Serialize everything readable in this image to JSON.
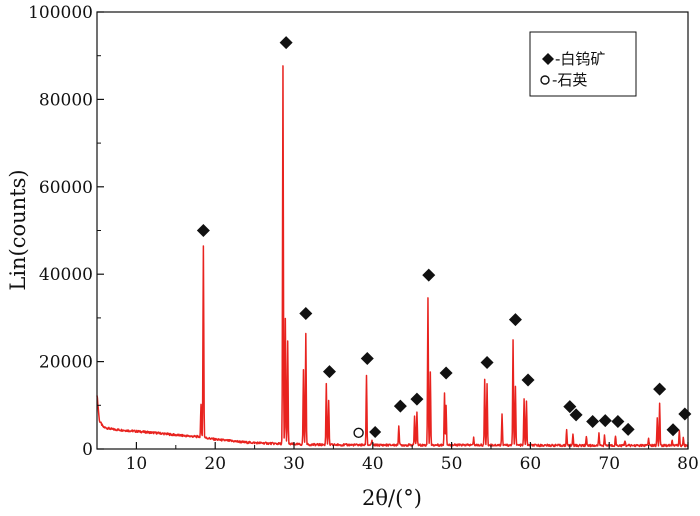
{
  "chart_data": {
    "type": "line",
    "xlabel": "2θ/(°)",
    "ylabel": "Lin(counts)",
    "xlim": [
      5,
      80
    ],
    "ylim": [
      0,
      100000
    ],
    "x_ticks": [
      10,
      20,
      30,
      40,
      50,
      60,
      70,
      80
    ],
    "y_ticks": [
      0,
      20000,
      40000,
      60000,
      80000,
      100000
    ],
    "x_tick_labels": [
      "10",
      "20",
      "30",
      "40",
      "50",
      "60",
      "70",
      "80"
    ],
    "y_tick_labels": [
      "0",
      "20000",
      "40000",
      "60000",
      "80000",
      "100000"
    ],
    "line_color": "#e8231f",
    "series": [
      {
        "color": "#e8231f",
        "baseline": [
          [
            5.0,
            12500
          ],
          [
            5.3,
            6500
          ],
          [
            5.8,
            5000
          ],
          [
            7,
            4500
          ],
          [
            9,
            4200
          ],
          [
            11,
            3900
          ],
          [
            13,
            3600
          ],
          [
            15,
            3200
          ],
          [
            17,
            2900
          ],
          [
            18,
            2800
          ],
          [
            20,
            2200
          ],
          [
            24,
            1500
          ],
          [
            28,
            1200
          ],
          [
            32,
            1000
          ],
          [
            36,
            950
          ],
          [
            40,
            900
          ],
          [
            45,
            900
          ],
          [
            50,
            900
          ],
          [
            55,
            900
          ],
          [
            60,
            850
          ],
          [
            65,
            800
          ],
          [
            70,
            800
          ],
          [
            75,
            800
          ],
          [
            80,
            800
          ]
        ],
        "peaks": [
          [
            18.5,
            46500
          ],
          [
            18.2,
            10000
          ],
          [
            28.6,
            87500
          ],
          [
            28.9,
            30000
          ],
          [
            29.2,
            24500
          ],
          [
            31.5,
            26500
          ],
          [
            31.2,
            18000
          ],
          [
            34.1,
            15000
          ],
          [
            34.4,
            11000
          ],
          [
            39.2,
            17000
          ],
          [
            39.9,
            2000
          ],
          [
            43.3,
            5500
          ],
          [
            45.3,
            7500
          ],
          [
            45.6,
            8500
          ],
          [
            47.0,
            34500
          ],
          [
            47.3,
            17500
          ],
          [
            49.1,
            13000
          ],
          [
            49.3,
            10000
          ],
          [
            52.8,
            2500
          ],
          [
            54.2,
            16000
          ],
          [
            54.5,
            15000
          ],
          [
            56.4,
            8000
          ],
          [
            57.8,
            25000
          ],
          [
            58.1,
            14500
          ],
          [
            59.2,
            11500
          ],
          [
            59.5,
            11000
          ],
          [
            64.6,
            4500
          ],
          [
            65.4,
            3500
          ],
          [
            67.1,
            3000
          ],
          [
            68.7,
            3500
          ],
          [
            69.4,
            3000
          ],
          [
            70.8,
            3000
          ],
          [
            72.0,
            2000
          ],
          [
            75.0,
            2500
          ],
          [
            76.1,
            7000
          ],
          [
            76.4,
            10500
          ],
          [
            78.0,
            2000
          ],
          [
            78.9,
            4000
          ],
          [
            79.4,
            2500
          ]
        ]
      }
    ],
    "markers": {
      "scheelite": {
        "symbol": "diamond",
        "points": [
          [
            18.5,
            50000
          ],
          [
            29.0,
            93000
          ],
          [
            31.5,
            31000
          ],
          [
            34.5,
            17700
          ],
          [
            39.3,
            20700
          ],
          [
            43.5,
            9800
          ],
          [
            45.6,
            11400
          ],
          [
            47.1,
            39800
          ],
          [
            49.3,
            17400
          ],
          [
            54.5,
            19800
          ],
          [
            58.1,
            29600
          ],
          [
            59.7,
            15800
          ],
          [
            65.0,
            9700
          ],
          [
            65.8,
            7800
          ],
          [
            67.9,
            6300
          ],
          [
            69.5,
            6500
          ],
          [
            71.1,
            6300
          ],
          [
            72.4,
            4500
          ],
          [
            76.4,
            13700
          ],
          [
            78.1,
            4400
          ],
          [
            79.6,
            8000
          ]
        ]
      },
      "quartz": {
        "symbol": "circle",
        "points": [
          [
            38.2,
            3700
          ]
        ]
      },
      "extra_diamond": {
        "symbol": "diamond",
        "points": [
          [
            40.3,
            3900
          ]
        ]
      }
    },
    "legend": {
      "position": "top-right",
      "entries": [
        {
          "symbol": "diamond",
          "label": "-白钨矿"
        },
        {
          "symbol": "circle",
          "label": "-石英"
        }
      ]
    },
    "grid": false
  }
}
